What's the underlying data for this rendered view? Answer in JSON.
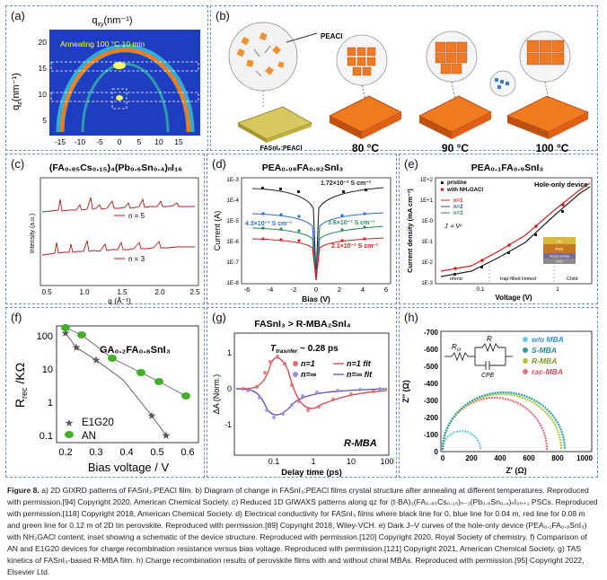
{
  "panels": {
    "a": {
      "label": "(a)",
      "top_axis": "q",
      "top_axis_sub": "xy",
      "top_axis_unit": "(nm⁻¹)",
      "left_axis": "q",
      "left_axis_sub": "z",
      "left_axis_unit": "(nm⁻¹)",
      "annotation": "Annealing 100 °C 10 min",
      "x_ticks": [
        "-15",
        "-10",
        "-5",
        "0",
        "5",
        "10",
        "15"
      ],
      "y_ticks": [
        "20",
        "15",
        "10",
        "5"
      ],
      "colors": {
        "background": "#1a2fb5",
        "ring": "#ff7a10",
        "hot": "#ffff60"
      }
    },
    "b": {
      "label": "(b)",
      "reagent": "PEACl",
      "base_label": "FASnI₃:PEACl",
      "stages": [
        "80 °C",
        "90 °C",
        "100 °C"
      ]
    },
    "c": {
      "label": "(c)",
      "title": "(FA₀.₈₅Cs₀.₁₅)₄(Pb₀.₆Sn₀.₄)ₙI₁₆",
      "y_label": "Intensity (a.u.)",
      "x_label": "q (Å⁻¹)",
      "series_labels": [
        "n = 5",
        "n = 3"
      ],
      "x_ticks": [
        "0.5",
        "1.0",
        "1.5",
        "2.0",
        "2.5"
      ],
      "line_color": "#b01c1c"
    },
    "d": {
      "label": "(d)",
      "title": "PEA₀.₀₈FA₀.₉₂SnI₃",
      "y_label": "Current (A)",
      "x_label": "Bias (V)",
      "y_ticks": [
        "1E-3",
        "1E-4",
        "1E-5",
        "1E-6",
        "1E-7",
        "1E-8"
      ],
      "x_ticks": [
        "-6",
        "-4",
        "-2",
        "0",
        "2",
        "4",
        "6"
      ],
      "annotations": [
        "1.72×10⁻² S cm⁻¹",
        "4.3×10⁻³ S cm⁻¹",
        "3.6×10⁻³ S cm⁻¹",
        "2.1×10⁻³ S cm⁻¹"
      ],
      "series_colors": [
        "#222222",
        "#2b6fd6",
        "#2e8b57",
        "#d62020"
      ]
    },
    "e": {
      "label": "(e)",
      "title": "PEA₀.₁FA₀.₉SnI₃",
      "y_label": "Current density (mA cm⁻²)",
      "x_label": "Voltage (V)",
      "legend_top": [
        "pristine",
        "with NH₂GACl"
      ],
      "legend_n": [
        "n=1",
        "n=2",
        "n=3"
      ],
      "device_title": "Hole-only device",
      "law": "J ∝ Vⁿ",
      "regimes": [
        "ohmic",
        "trap-filled limited",
        "Child"
      ],
      "layers": [
        "Au",
        "PVK",
        "PEDOT:PSS",
        "ITO"
      ],
      "y_ticks": [
        "1E+2",
        "1E+1",
        "1E-0",
        "1E-1",
        "1E-2",
        "1E-3"
      ],
      "x_ticks": [
        "0.1",
        "1"
      ]
    },
    "f": {
      "label": "(f)",
      "title": "GA₀.₂FA₀.₈SnI₃",
      "y_label": "R",
      "y_label_sub": "rec",
      "y_label_unit": " /KΩ",
      "x_label": "Bias voltage / V",
      "y_ticks": [
        "100",
        "10",
        "1",
        "0.1"
      ],
      "x_ticks": [
        "0.2",
        "0.3",
        "0.4",
        "0.5",
        "0.6"
      ],
      "legend": [
        "E1G20",
        "AN"
      ],
      "series_colors": [
        "#555555",
        "#44b02a"
      ]
    },
    "g": {
      "label": "(g)",
      "title": "FASnI₃ > R-MBA₂SnI₄",
      "transfer": "T",
      "transfer_sub": "trasnfer",
      "transfer_value": " ~ 0.28 ps",
      "legend": [
        "n=1",
        "n=∞",
        "n=1 fit",
        "n=∞ fit"
      ],
      "y_label": "ΔA (Norm.)",
      "x_label": "Delay time (ps)",
      "y_ticks": [
        "1",
        "0",
        "-1"
      ],
      "x_ticks": [
        "0.1",
        "1",
        "10",
        "100"
      ],
      "corner_label": "R-MBA",
      "series_colors": [
        "#e86a6a",
        "#9a8ed8"
      ]
    },
    "h": {
      "label": "(h)",
      "y_label": "Z″ (Ω)",
      "x_label": "Z′ (Ω)",
      "y_ticks": [
        "-700",
        "-600",
        "-500",
        "-400",
        "-300",
        "-200",
        "-100",
        "0"
      ],
      "x_ticks": [
        "0",
        "200",
        "400",
        "600",
        "800",
        "1000"
      ],
      "legend": [
        "w/o MBA",
        "S-MBA",
        "R-MBA",
        "rac-MBA"
      ],
      "circuit": [
        "R",
        "ct",
        "R",
        "CPE"
      ],
      "series_colors": [
        "#6fc8f0",
        "#2aa0a0",
        "#a8c83a",
        "#e8707a"
      ]
    }
  },
  "caption": {
    "figure": "Figure 8.",
    "text": "a) 2D GIXRD patterns of FASnI₃:PEACl film. b) Diagram of change in FASnI₃:PEACl films crystal structure after annealing at different temperatures. Reproduced with permission.[94] Copyright 2020, American Chemical Society. c) Reduced 1D GIWAXS patterns along qz for (t-BA)₂(FA₀.₈₅Cs₀.₁₅)ₙ₋₁(Pb₀.₆Sn₀.₄)ₙI₃ₙ₊₁ PSCs. Reproduced with permission.[118] Copyright 2018, American Chemical Society. d) Electrical conductivity for FASnI₃ films where black line for 0, blue line for 0.04 m, red line for 0.08 m and green line for 0.12 m of 2D tin perovskite. Reproduced with permission.[89] Copyright 2018, Wiley-VCH. e) Dark J–V curves of the hole-only device (PEA₀.₁FA₀.₉SnI₃) with NH₂GACl content; inset showing a schematic of the device structure. Reproduced with permission.[120] Copyright 2020, Royal Society of chemistry. f) Comparison of AN and E1G20 devices for charge recombination resistance versus bias voltage. Reproduced with permission.[121] Copyright 2021, American Chemical Society. g) TAS kinetics of FASnI₃-based R-MBA film. h) Charge recombination results of perovskite films with and without chiral MBAs. Reproduced with permission.[95] Copyright 2022, Elsevier Ltd."
  }
}
